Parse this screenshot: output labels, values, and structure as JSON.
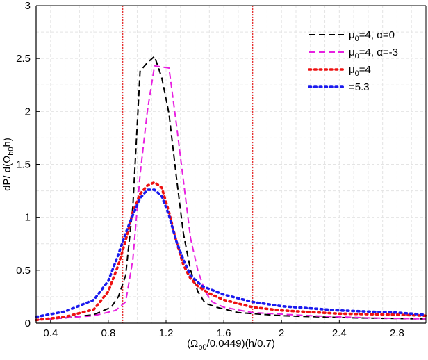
{
  "chart_data": {
    "type": "line",
    "xlabel": "(Ωb0/0.0449)(h/0.7)",
    "xlabel_parts": [
      {
        "t": "(Ω",
        "sub": false
      },
      {
        "t": "b0",
        "sub": true
      },
      {
        "t": "/0.0449)(h/0.7)",
        "sub": false
      }
    ],
    "ylabel": "dP/ d(Ωb0h)",
    "ylabel_parts": [
      {
        "t": "dP/ d(Ω",
        "sub": false
      },
      {
        "t": "b0",
        "sub": true
      },
      {
        "t": "h)",
        "sub": false
      }
    ],
    "xlim": [
      0.3,
      3.0
    ],
    "ylim": [
      0,
      3
    ],
    "xticks": [
      0.4,
      0.8,
      1.2,
      1.6,
      2,
      2.4,
      2.8
    ],
    "xtick_labels": [
      "0.4",
      "0.8",
      "1.2",
      "1.6",
      "2",
      "2.4",
      "2.8"
    ],
    "yticks": [
      0,
      0.5,
      1,
      1.5,
      2,
      2.5,
      3
    ],
    "ytick_labels": [
      "0",
      "0.5",
      "1",
      "1.5",
      "2",
      "2.5",
      "3"
    ],
    "grid": true,
    "legend_position": "top-right",
    "vlines": [
      {
        "x": 0.9,
        "color": "#e83030"
      },
      {
        "x": 1.8,
        "color": "#e83030"
      }
    ],
    "series": [
      {
        "name": "μ0=4, α=0",
        "legend_parts": [
          {
            "t": "μ",
            "sub": false
          },
          {
            "t": "0",
            "sub": true
          },
          {
            "t": "=4, α=0",
            "sub": false
          }
        ],
        "color": "#000000",
        "style": "dashed",
        "x": [
          0.3,
          0.5,
          0.7,
          0.82,
          0.87,
          0.92,
          0.97,
          1.02,
          1.07,
          1.12,
          1.17,
          1.22,
          1.27,
          1.32,
          1.37,
          1.42,
          1.47,
          1.55,
          1.7,
          2.0,
          2.5,
          3.0
        ],
        "y": [
          0.03,
          0.05,
          0.08,
          0.15,
          0.25,
          0.45,
          1.1,
          2.38,
          2.46,
          2.52,
          2.32,
          1.98,
          1.4,
          0.85,
          0.5,
          0.3,
          0.19,
          0.15,
          0.1,
          0.07,
          0.05,
          0.04
        ]
      },
      {
        "name": "μ0=4, α=-3",
        "legend_parts": [
          {
            "t": "μ",
            "sub": false
          },
          {
            "t": "0",
            "sub": true
          },
          {
            "t": "=4, α=-3",
            "sub": false
          }
        ],
        "color": "#e820e0",
        "style": "dashed",
        "x": [
          0.3,
          0.5,
          0.7,
          0.85,
          0.92,
          0.97,
          1.02,
          1.07,
          1.12,
          1.17,
          1.22,
          1.27,
          1.32,
          1.37,
          1.42,
          1.47,
          1.52,
          1.6,
          1.8,
          2.2,
          2.6,
          3.0
        ],
        "y": [
          0.03,
          0.05,
          0.07,
          0.12,
          0.2,
          0.6,
          1.4,
          2.0,
          2.43,
          2.42,
          2.41,
          1.9,
          1.35,
          0.8,
          0.5,
          0.3,
          0.2,
          0.15,
          0.1,
          0.07,
          0.05,
          0.04
        ]
      },
      {
        "name": "μ0=4",
        "legend_parts": [
          {
            "t": "μ",
            "sub": false
          },
          {
            "t": "0",
            "sub": true
          },
          {
            "t": "=4",
            "sub": false
          }
        ],
        "color": "#ee1111",
        "style": "dotted",
        "x": [
          0.3,
          0.5,
          0.7,
          0.8,
          0.87,
          0.92,
          0.97,
          1.02,
          1.07,
          1.12,
          1.17,
          1.22,
          1.27,
          1.32,
          1.37,
          1.42,
          1.5,
          1.6,
          1.8,
          2.0,
          2.4,
          2.8,
          3.0
        ],
        "y": [
          0.03,
          0.06,
          0.13,
          0.3,
          0.55,
          0.78,
          1.05,
          1.22,
          1.3,
          1.33,
          1.28,
          1.05,
          0.78,
          0.55,
          0.42,
          0.35,
          0.28,
          0.22,
          0.15,
          0.12,
          0.09,
          0.08,
          0.07
        ]
      },
      {
        "name": "=5.3",
        "legend_parts": [
          {
            "t": "=5.3",
            "sub": false
          }
        ],
        "color": "#1a1aee",
        "style": "dotted",
        "x": [
          0.3,
          0.5,
          0.7,
          0.8,
          0.87,
          0.92,
          0.97,
          1.02,
          1.07,
          1.12,
          1.17,
          1.22,
          1.27,
          1.32,
          1.37,
          1.45,
          1.6,
          1.8,
          2.0,
          2.4,
          2.8,
          3.0
        ],
        "y": [
          0.06,
          0.11,
          0.22,
          0.4,
          0.65,
          0.85,
          1.02,
          1.18,
          1.26,
          1.26,
          1.2,
          1.02,
          0.78,
          0.6,
          0.45,
          0.35,
          0.27,
          0.2,
          0.16,
          0.12,
          0.1,
          0.08
        ]
      }
    ]
  }
}
